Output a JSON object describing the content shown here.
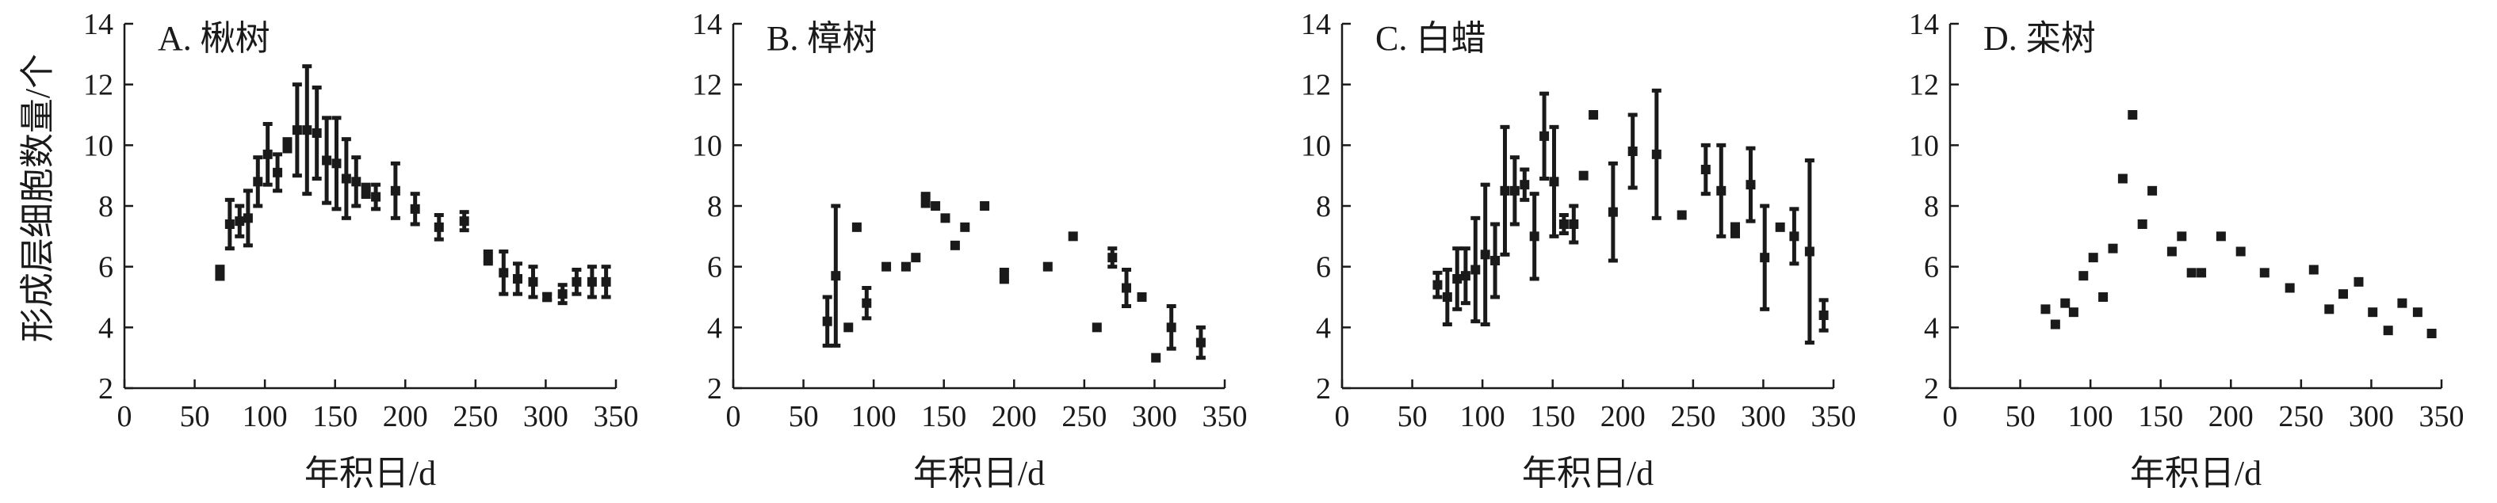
{
  "figure": {
    "ylabel": "形成层细胞数量/个",
    "xlabel": "年积日/d"
  },
  "chart_data": [
    {
      "type": "scatter",
      "title": "A. 楸树",
      "xlabel": "年积日/d",
      "ylabel": "形成层细胞数量/个",
      "xlim": [
        0,
        350
      ],
      "ylim": [
        2,
        14
      ],
      "xticks": [
        0,
        50,
        100,
        150,
        200,
        250,
        300,
        350
      ],
      "yticks": [
        2,
        4,
        6,
        8,
        10,
        12,
        14
      ],
      "marker": "square",
      "error_bars": true,
      "points": [
        {
          "x": 68,
          "y": 5.8,
          "yerr": 0.2
        },
        {
          "x": 75,
          "y": 7.4,
          "yerr": 0.8
        },
        {
          "x": 82,
          "y": 7.5,
          "yerr": 0.5
        },
        {
          "x": 88,
          "y": 7.6,
          "yerr": 0.9
        },
        {
          "x": 95,
          "y": 8.8,
          "yerr": 0.8
        },
        {
          "x": 102,
          "y": 9.7,
          "yerr": 1.0
        },
        {
          "x": 109,
          "y": 9.1,
          "yerr": 0.6
        },
        {
          "x": 116,
          "y": 10.0,
          "yerr": 0.2
        },
        {
          "x": 123,
          "y": 10.5,
          "yerr": 1.5
        },
        {
          "x": 130,
          "y": 10.5,
          "yerr": 2.1
        },
        {
          "x": 137,
          "y": 10.4,
          "yerr": 1.5
        },
        {
          "x": 144,
          "y": 9.5,
          "yerr": 1.4
        },
        {
          "x": 151,
          "y": 9.4,
          "yerr": 1.5
        },
        {
          "x": 158,
          "y": 8.9,
          "yerr": 1.3
        },
        {
          "x": 165,
          "y": 8.8,
          "yerr": 0.8
        },
        {
          "x": 172,
          "y": 8.5,
          "yerr": 0.2
        },
        {
          "x": 179,
          "y": 8.3,
          "yerr": 0.4
        },
        {
          "x": 193,
          "y": 8.5,
          "yerr": 0.9
        },
        {
          "x": 207,
          "y": 7.9,
          "yerr": 0.5
        },
        {
          "x": 224,
          "y": 7.3,
          "yerr": 0.4
        },
        {
          "x": 242,
          "y": 7.5,
          "yerr": 0.3
        },
        {
          "x": 259,
          "y": 6.3,
          "yerr": 0.2
        },
        {
          "x": 270,
          "y": 5.8,
          "yerr": 0.7
        },
        {
          "x": 280,
          "y": 5.6,
          "yerr": 0.5
        },
        {
          "x": 291,
          "y": 5.5,
          "yerr": 0.5
        },
        {
          "x": 301,
          "y": 5.0,
          "yerr": 0.1
        },
        {
          "x": 312,
          "y": 5.1,
          "yerr": 0.3
        },
        {
          "x": 322,
          "y": 5.5,
          "yerr": 0.4
        },
        {
          "x": 333,
          "y": 5.5,
          "yerr": 0.5
        },
        {
          "x": 343,
          "y": 5.5,
          "yerr": 0.5
        }
      ]
    },
    {
      "type": "scatter",
      "title": "B. 樟树",
      "xlabel": "年积日/d",
      "xlim": [
        0,
        350
      ],
      "ylim": [
        2,
        14
      ],
      "xticks": [
        0,
        50,
        100,
        150,
        200,
        250,
        300,
        350
      ],
      "yticks": [
        2,
        4,
        6,
        8,
        10,
        12,
        14
      ],
      "marker": "square",
      "error_bars": true,
      "points": [
        {
          "x": 67,
          "y": 4.2,
          "yerr": 0.8
        },
        {
          "x": 73,
          "y": 5.7,
          "yerr": 2.3
        },
        {
          "x": 82,
          "y": 4.0,
          "yerr": 0
        },
        {
          "x": 88,
          "y": 7.3,
          "yerr": 0
        },
        {
          "x": 95,
          "y": 4.8,
          "yerr": 0.5
        },
        {
          "x": 109,
          "y": 6.0,
          "yerr": 0
        },
        {
          "x": 123,
          "y": 6.0,
          "yerr": 0
        },
        {
          "x": 130,
          "y": 6.3,
          "yerr": 0
        },
        {
          "x": 137,
          "y": 8.2,
          "yerr": 0.2
        },
        {
          "x": 144,
          "y": 8.0,
          "yerr": 0
        },
        {
          "x": 151,
          "y": 7.6,
          "yerr": 0
        },
        {
          "x": 158,
          "y": 6.7,
          "yerr": 0
        },
        {
          "x": 165,
          "y": 7.3,
          "yerr": 0
        },
        {
          "x": 179,
          "y": 8.0,
          "yerr": 0
        },
        {
          "x": 193,
          "y": 5.7,
          "yerr": 0.2
        },
        {
          "x": 224,
          "y": 6.0,
          "yerr": 0
        },
        {
          "x": 242,
          "y": 7.0,
          "yerr": 0
        },
        {
          "x": 259,
          "y": 4.0,
          "yerr": 0
        },
        {
          "x": 270,
          "y": 6.3,
          "yerr": 0.3
        },
        {
          "x": 280,
          "y": 5.3,
          "yerr": 0.6
        },
        {
          "x": 291,
          "y": 5.0,
          "yerr": 0
        },
        {
          "x": 301,
          "y": 3.0,
          "yerr": 0
        },
        {
          "x": 312,
          "y": 4.0,
          "yerr": 0.7
        },
        {
          "x": 333,
          "y": 3.5,
          "yerr": 0.5
        }
      ]
    },
    {
      "type": "scatter",
      "title": "C. 白蜡",
      "xlabel": "年积日/d",
      "xlim": [
        0,
        350
      ],
      "ylim": [
        2,
        14
      ],
      "xticks": [
        0,
        50,
        100,
        150,
        200,
        250,
        300,
        350
      ],
      "yticks": [
        2,
        4,
        6,
        8,
        10,
        12,
        14
      ],
      "marker": "square",
      "error_bars": true,
      "points": [
        {
          "x": 68,
          "y": 5.4,
          "yerr": 0.4
        },
        {
          "x": 75,
          "y": 5.0,
          "yerr": 0.9
        },
        {
          "x": 82,
          "y": 5.6,
          "yerr": 1.0
        },
        {
          "x": 88,
          "y": 5.7,
          "yerr": 0.9
        },
        {
          "x": 95,
          "y": 5.9,
          "yerr": 1.7
        },
        {
          "x": 102,
          "y": 6.4,
          "yerr": 2.3
        },
        {
          "x": 109,
          "y": 6.2,
          "yerr": 1.2
        },
        {
          "x": 116,
          "y": 8.5,
          "yerr": 2.1
        },
        {
          "x": 123,
          "y": 8.5,
          "yerr": 1.1
        },
        {
          "x": 130,
          "y": 8.7,
          "yerr": 0.5
        },
        {
          "x": 137,
          "y": 7.0,
          "yerr": 1.4
        },
        {
          "x": 144,
          "y": 10.3,
          "yerr": 1.4
        },
        {
          "x": 151,
          "y": 8.8,
          "yerr": 1.8
        },
        {
          "x": 158,
          "y": 7.4,
          "yerr": 0.3
        },
        {
          "x": 165,
          "y": 7.4,
          "yerr": 0.6
        },
        {
          "x": 172,
          "y": 9.0,
          "yerr": 0
        },
        {
          "x": 179,
          "y": 11.0,
          "yerr": 0
        },
        {
          "x": 193,
          "y": 7.8,
          "yerr": 1.6
        },
        {
          "x": 207,
          "y": 9.8,
          "yerr": 1.2
        },
        {
          "x": 224,
          "y": 9.7,
          "yerr": 2.1
        },
        {
          "x": 242,
          "y": 7.7,
          "yerr": 0
        },
        {
          "x": 259,
          "y": 9.2,
          "yerr": 0.8
        },
        {
          "x": 270,
          "y": 8.5,
          "yerr": 1.5
        },
        {
          "x": 280,
          "y": 7.2,
          "yerr": 0.2
        },
        {
          "x": 291,
          "y": 8.7,
          "yerr": 1.2
        },
        {
          "x": 301,
          "y": 6.3,
          "yerr": 1.7
        },
        {
          "x": 312,
          "y": 7.3,
          "yerr": 0
        },
        {
          "x": 322,
          "y": 7.0,
          "yerr": 0.9
        },
        {
          "x": 333,
          "y": 6.5,
          "yerr": 3.0
        },
        {
          "x": 343,
          "y": 4.4,
          "yerr": 0.5
        }
      ]
    },
    {
      "type": "scatter",
      "title": "D. 栾树",
      "xlabel": "年积日/d",
      "xlim": [
        0,
        350
      ],
      "ylim": [
        2,
        14
      ],
      "xticks": [
        0,
        50,
        100,
        150,
        200,
        250,
        300,
        350
      ],
      "yticks": [
        2,
        4,
        6,
        8,
        10,
        12,
        14
      ],
      "marker": "square",
      "error_bars": false,
      "points": [
        {
          "x": 68,
          "y": 4.6
        },
        {
          "x": 75,
          "y": 4.1
        },
        {
          "x": 82,
          "y": 4.8
        },
        {
          "x": 88,
          "y": 4.5
        },
        {
          "x": 95,
          "y": 5.7
        },
        {
          "x": 102,
          "y": 6.3
        },
        {
          "x": 109,
          "y": 5.0
        },
        {
          "x": 116,
          "y": 6.6
        },
        {
          "x": 123,
          "y": 8.9
        },
        {
          "x": 130,
          "y": 11.0
        },
        {
          "x": 137,
          "y": 7.4
        },
        {
          "x": 144,
          "y": 8.5
        },
        {
          "x": 158,
          "y": 6.5
        },
        {
          "x": 165,
          "y": 7.0
        },
        {
          "x": 172,
          "y": 5.8
        },
        {
          "x": 179,
          "y": 5.8
        },
        {
          "x": 193,
          "y": 7.0
        },
        {
          "x": 207,
          "y": 6.5
        },
        {
          "x": 224,
          "y": 5.8
        },
        {
          "x": 242,
          "y": 5.3
        },
        {
          "x": 259,
          "y": 5.9
        },
        {
          "x": 270,
          "y": 4.6
        },
        {
          "x": 280,
          "y": 5.1
        },
        {
          "x": 291,
          "y": 5.5
        },
        {
          "x": 301,
          "y": 4.5
        },
        {
          "x": 312,
          "y": 3.9
        },
        {
          "x": 322,
          "y": 4.8
        },
        {
          "x": 333,
          "y": 4.5
        },
        {
          "x": 343,
          "y": 3.8
        }
      ]
    }
  ]
}
